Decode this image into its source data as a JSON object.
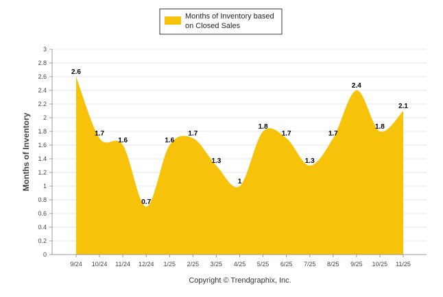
{
  "chart_data": {
    "type": "area",
    "categories": [
      "9/24",
      "10/24",
      "11/24",
      "12/24",
      "1/25",
      "2/25",
      "3/25",
      "4/25",
      "5/25",
      "6/25",
      "7/25",
      "8/25",
      "9/25",
      "10/25",
      "11/25"
    ],
    "series": [
      {
        "name": "Months of Inventory based on Closed Sales",
        "values": [
          2.6,
          1.7,
          1.6,
          0.7,
          1.6,
          1.7,
          1.3,
          1,
          1.8,
          1.7,
          1.3,
          1.7,
          2.4,
          1.8,
          2.1
        ],
        "labels": [
          "2.6",
          "1.7",
          "1.6",
          "0.7",
          "1.6",
          "1.7",
          "1.3",
          "1",
          "1.8",
          "1.7",
          "1.3",
          "1.7",
          "2.4",
          "1.8",
          "2.1"
        ],
        "color": "#F7C30A"
      }
    ],
    "ylabel": "Months of Inventory",
    "ylim": [
      0,
      3
    ],
    "yticks": [
      "0",
      "0.2",
      "0.4",
      "0.6",
      "0.8",
      "1",
      "1.2",
      "1.4",
      "1.6",
      "1.8",
      "2",
      "2.2",
      "2.4",
      "2.6",
      "2.8",
      "3"
    ],
    "grid": true,
    "legend_position": "top-center"
  },
  "legend": {
    "line1": "Months of Inventory based",
    "line2": "on Closed Sales"
  },
  "footer": {
    "copyright": "Copyright © Trendgraphix, Inc."
  }
}
